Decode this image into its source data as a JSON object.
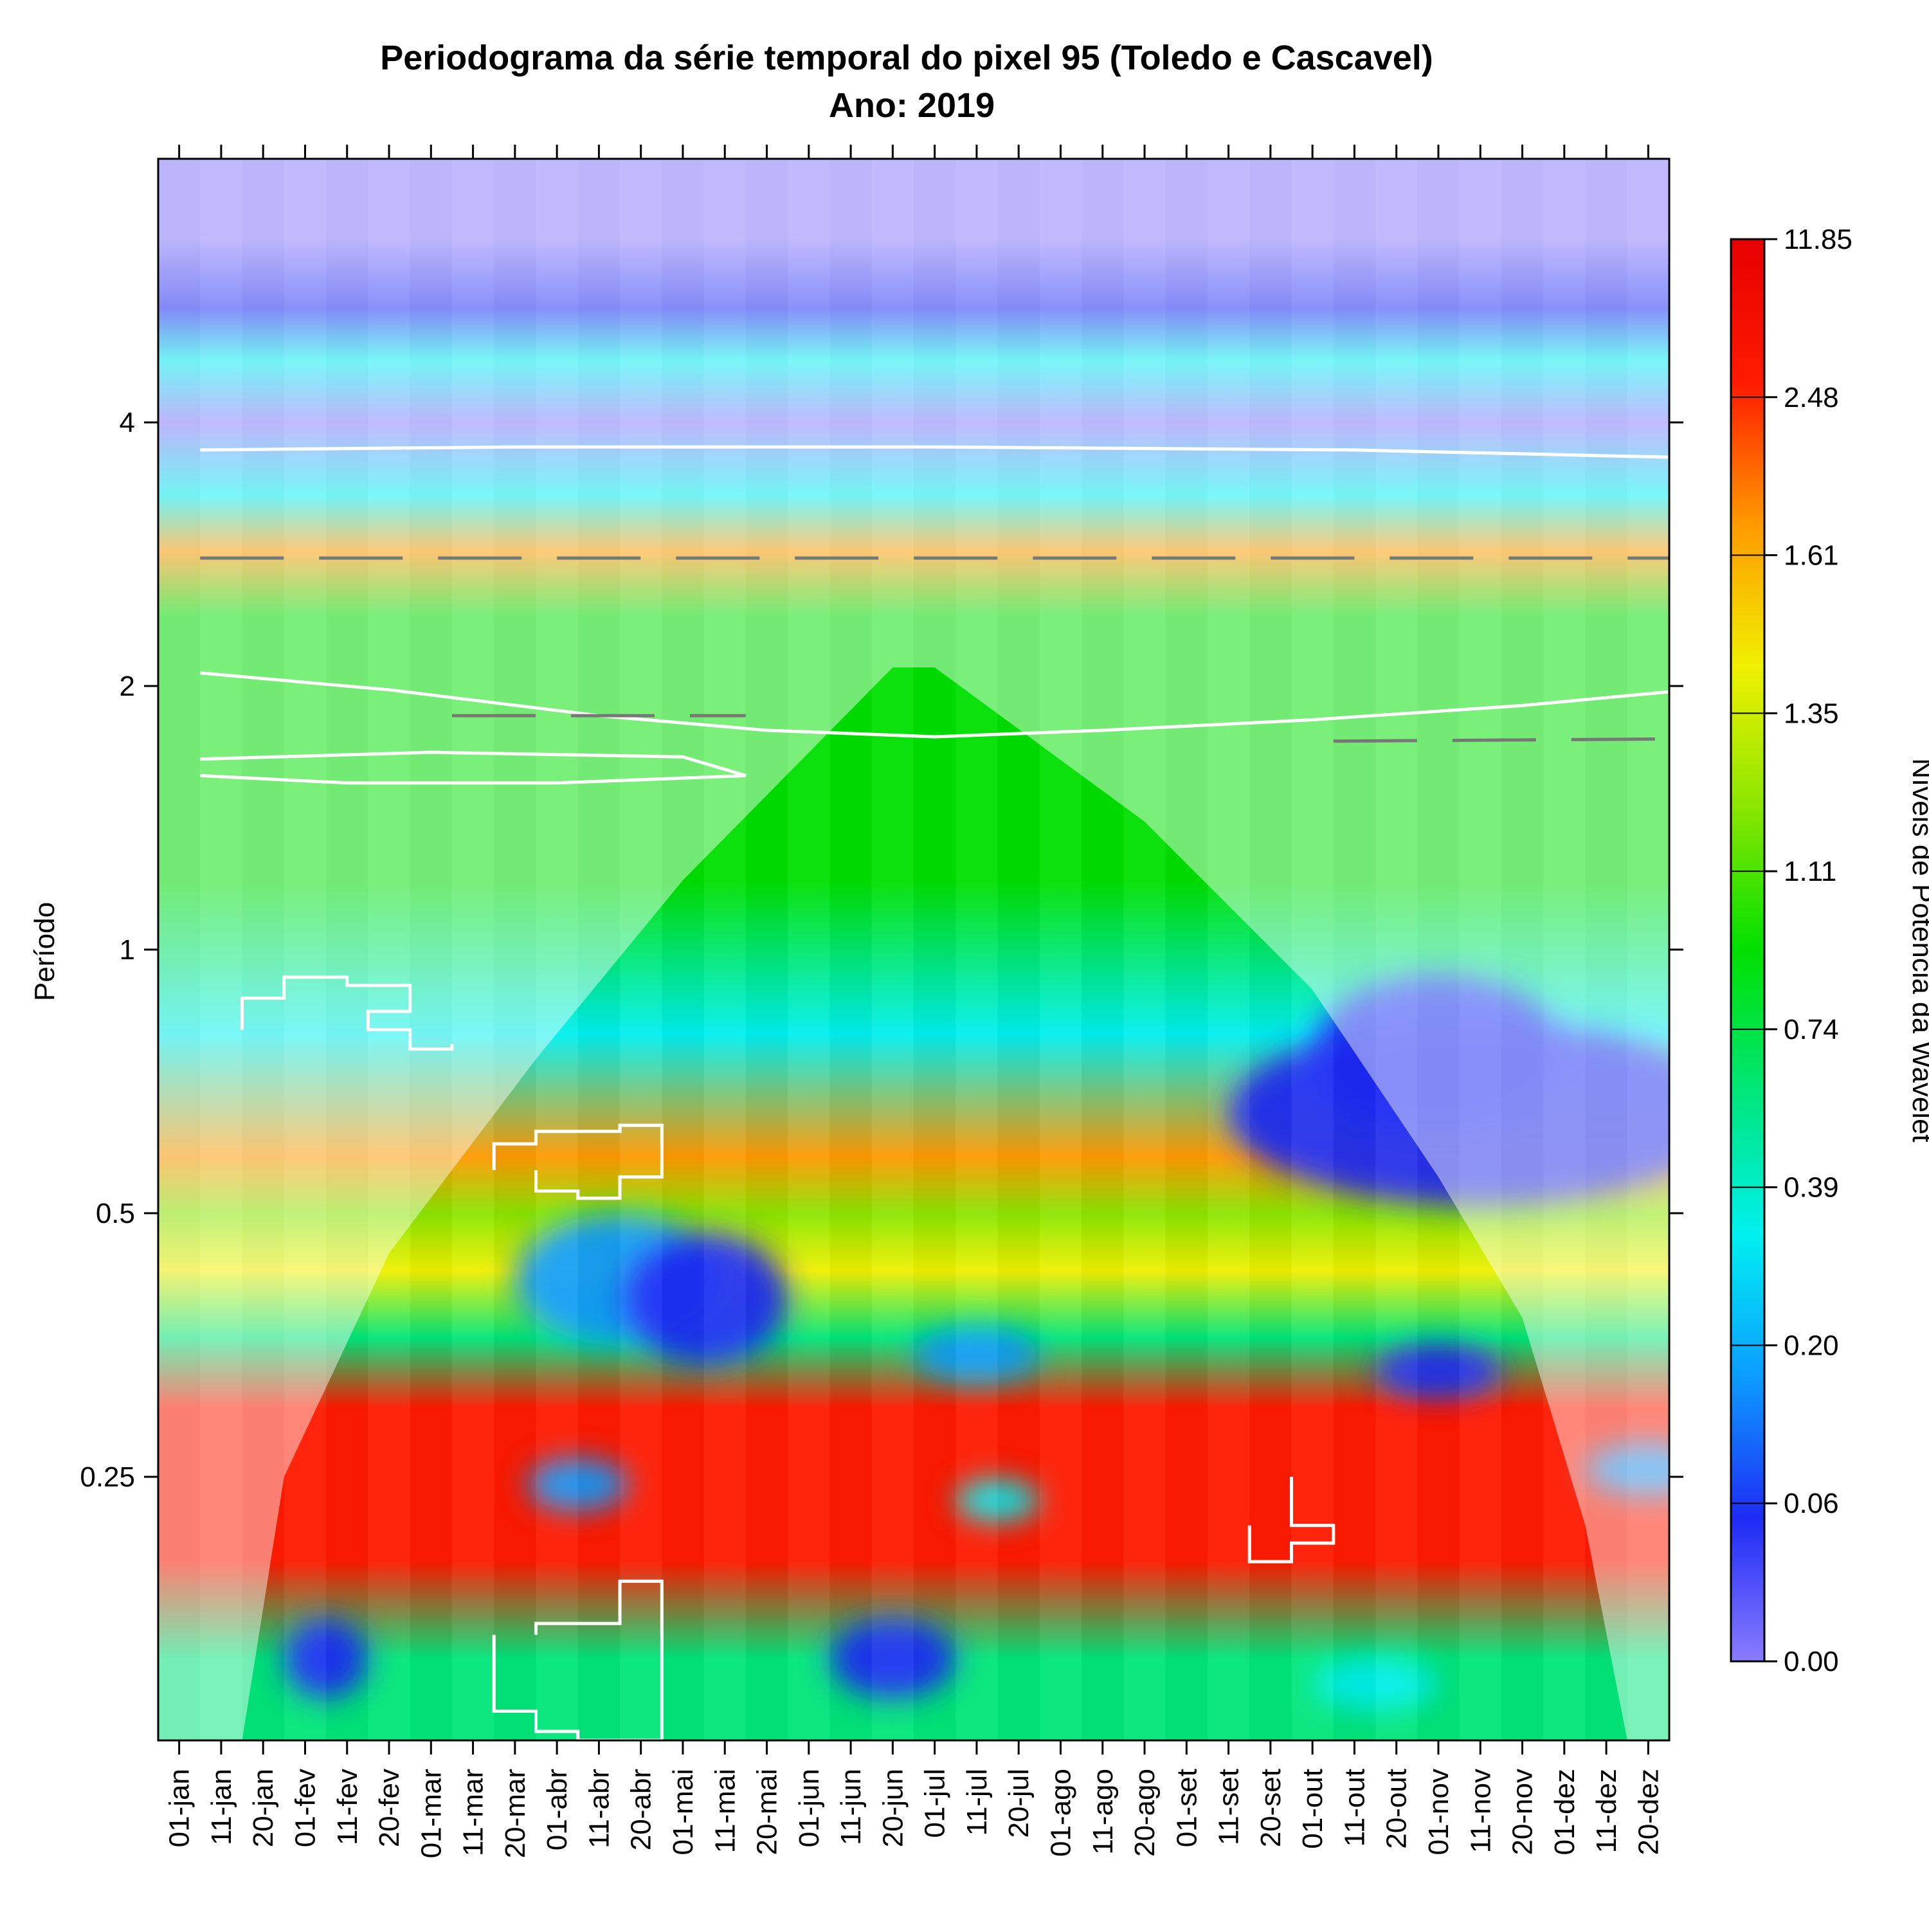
{
  "chart_data": {
    "type": "heatmap",
    "title": "Periodograma da série temporal do pixel 95 (Toledo e Cascavel)",
    "subtitle": "Ano: 2019",
    "xlabel": "",
    "ylabel": "Período",
    "y_scale": "log2",
    "ylim": [
      0.125,
      8
    ],
    "x_ticks": [
      "01-jan",
      "11-jan",
      "20-jan",
      "01-fev",
      "11-fev",
      "20-fev",
      "01-mar",
      "11-mar",
      "20-mar",
      "01-abr",
      "11-abr",
      "20-abr",
      "01-mai",
      "11-mai",
      "20-mai",
      "01-jun",
      "11-jun",
      "20-jun",
      "01-jul",
      "11-jul",
      "20-jul",
      "01-ago",
      "11-ago",
      "20-ago",
      "01-set",
      "11-set",
      "20-set",
      "01-out",
      "11-out",
      "20-out",
      "01-nov",
      "11-nov",
      "20-nov",
      "01-dez",
      "11-dez",
      "20-dez"
    ],
    "y_ticks": [
      {
        "value": 4,
        "label": "4"
      },
      {
        "value": 2,
        "label": "2"
      },
      {
        "value": 1,
        "label": "1"
      },
      {
        "value": 0.5,
        "label": "0.5"
      },
      {
        "value": 0.25,
        "label": "0.25"
      }
    ],
    "colorbar": {
      "title": "Níveis de Potência da Wavelet",
      "levels": [
        "0.00",
        "0.06",
        "0.20",
        "0.39",
        "0.74",
        "1.11",
        "1.35",
        "1.61",
        "2.48",
        "11.85"
      ],
      "colors": [
        "#8a7cff",
        "#1e2cf5",
        "#0d9cff",
        "#00f0f0",
        "#00e67a",
        "#00e000",
        "#8ae600",
        "#f0f000",
        "#ff9900",
        "#ff1a00",
        "#e60000"
      ]
    },
    "power_bands": [
      {
        "period": 6.5,
        "level": 0
      },
      {
        "period": 5.4,
        "level": 1
      },
      {
        "period": 4.7,
        "level": 3
      },
      {
        "period": 4.0,
        "level": 0
      },
      {
        "period": 3.3,
        "level": 3
      },
      {
        "period": 2.85,
        "level": 8
      },
      {
        "period": 2.4,
        "level": 5
      },
      {
        "period": 1.9,
        "level": 5
      },
      {
        "period": 1.2,
        "level": 5
      },
      {
        "period": 0.8,
        "level": 3
      },
      {
        "period": 0.58,
        "level": 8
      },
      {
        "period": 0.5,
        "level": 6
      },
      {
        "period": 0.43,
        "level": 7
      },
      {
        "period": 0.36,
        "level": 4
      },
      {
        "period": 0.3,
        "level": 9
      },
      {
        "period": 0.2,
        "level": 9
      },
      {
        "period": 0.155,
        "level": 4
      },
      {
        "period": 0.13,
        "level": 4
      }
    ],
    "blobs": [
      {
        "x": 31,
        "period": 0.65,
        "rx": 6,
        "ry_log2": 0.35,
        "level": 1
      },
      {
        "x": 30,
        "period": 0.76,
        "rx": 3,
        "ry_log2": 0.3,
        "level": 1
      },
      {
        "x": 10.5,
        "period": 0.42,
        "rx": 2.5,
        "ry_log2": 0.25,
        "level": 2
      },
      {
        "x": 12.5,
        "period": 0.4,
        "rx": 2,
        "ry_log2": 0.25,
        "level": 1
      },
      {
        "x": 19,
        "period": 0.345,
        "rx": 1.5,
        "ry_log2": 0.1,
        "level": 2
      },
      {
        "x": 30,
        "period": 0.33,
        "rx": 1.5,
        "ry_log2": 0.1,
        "level": 1
      },
      {
        "x": 3.5,
        "period": 0.155,
        "rx": 1,
        "ry_log2": 0.15,
        "level": 1
      },
      {
        "x": 17,
        "period": 0.155,
        "rx": 1.5,
        "ry_log2": 0.15,
        "level": 1
      },
      {
        "x": 9.5,
        "period": 0.245,
        "rx": 1.2,
        "ry_log2": 0.1,
        "level": 2
      },
      {
        "x": 19.5,
        "period": 0.235,
        "rx": 1,
        "ry_log2": 0.08,
        "level": 3
      },
      {
        "x": 35,
        "period": 0.255,
        "rx": 1.5,
        "ry_log2": 0.1,
        "level": 2
      },
      {
        "x": 28.5,
        "period": 0.145,
        "rx": 1.5,
        "ry_log2": 0.1,
        "level": 3
      }
    ],
    "cone_of_influence": [
      [
        1.5,
        0.125
      ],
      [
        2.5,
        0.25
      ],
      [
        5,
        0.45
      ],
      [
        8.5,
        0.75
      ],
      [
        12,
        1.2
      ],
      [
        17,
        2.1
      ],
      [
        18,
        2.1
      ],
      [
        23,
        1.4
      ],
      [
        27,
        0.9
      ],
      [
        30,
        0.55
      ],
      [
        32,
        0.38
      ],
      [
        33.5,
        0.22
      ],
      [
        34.5,
        0.125
      ]
    ],
    "ridge_lines": [
      {
        "color": "white",
        "points": [
          [
            0.5,
            3.72
          ],
          [
            8,
            3.75
          ],
          [
            18,
            3.75
          ],
          [
            28,
            3.72
          ],
          [
            35.5,
            3.65
          ]
        ]
      },
      {
        "color": "white",
        "points": [
          [
            0.5,
            2.07
          ],
          [
            5,
            1.98
          ],
          [
            10,
            1.85
          ],
          [
            14,
            1.78
          ],
          [
            18,
            1.75
          ],
          [
            22,
            1.78
          ],
          [
            27,
            1.83
          ],
          [
            32,
            1.9
          ],
          [
            35.5,
            1.97
          ]
        ]
      },
      {
        "color": "white",
        "points": [
          [
            0.5,
            1.65
          ],
          [
            6,
            1.68
          ],
          [
            12,
            1.66
          ],
          [
            13.5,
            1.58
          ],
          [
            9,
            1.55
          ],
          [
            4,
            1.55
          ],
          [
            0.5,
            1.58
          ]
        ]
      },
      {
        "color": "gray-dash",
        "points": [
          [
            0.5,
            2.8
          ],
          [
            35.5,
            2.8
          ]
        ]
      },
      {
        "color": "gray-dash",
        "points": [
          [
            6.5,
            1.85
          ],
          [
            13.5,
            1.85
          ]
        ]
      },
      {
        "color": "gray-dash",
        "points": [
          [
            27.5,
            1.73
          ],
          [
            35.5,
            1.74
          ]
        ]
      }
    ],
    "significance_regions": [
      {
        "points": [
          [
            1.5,
            0.81
          ],
          [
            1.5,
            0.88
          ],
          [
            2.5,
            0.88
          ],
          [
            2.5,
            0.93
          ],
          [
            4,
            0.93
          ],
          [
            4,
            0.91
          ],
          [
            5.5,
            0.91
          ],
          [
            5.5,
            0.85
          ],
          [
            4.5,
            0.85
          ],
          [
            4.5,
            0.81
          ],
          [
            5.5,
            0.81
          ],
          [
            5.5,
            0.77
          ],
          [
            6.5,
            0.77
          ],
          [
            6.5,
            0.78
          ]
        ]
      },
      {
        "points": [
          [
            7.5,
            0.56
          ],
          [
            7.5,
            0.6
          ],
          [
            8.5,
            0.6
          ],
          [
            8.5,
            0.62
          ],
          [
            10.5,
            0.62
          ],
          [
            10.5,
            0.63
          ],
          [
            11.5,
            0.63
          ],
          [
            11.5,
            0.55
          ],
          [
            10.5,
            0.55
          ],
          [
            10.5,
            0.52
          ],
          [
            9.5,
            0.52
          ],
          [
            9.5,
            0.53
          ],
          [
            8.5,
            0.53
          ],
          [
            8.5,
            0.56
          ]
        ]
      },
      {
        "points": [
          [
            7.5,
            0.165
          ],
          [
            7.5,
            0.135
          ],
          [
            8.5,
            0.135
          ],
          [
            8.5,
            0.128
          ],
          [
            9.5,
            0.128
          ],
          [
            9.5,
            0.125
          ],
          [
            11.5,
            0.125
          ],
          [
            11.5,
            0.19
          ],
          [
            10.5,
            0.19
          ],
          [
            10.5,
            0.17
          ],
          [
            8.5,
            0.17
          ],
          [
            8.5,
            0.165
          ]
        ]
      },
      {
        "points": [
          [
            25.5,
            0.22
          ],
          [
            25.5,
            0.2
          ],
          [
            26.5,
            0.2
          ],
          [
            26.5,
            0.21
          ],
          [
            27.5,
            0.21
          ],
          [
            27.5,
            0.22
          ],
          [
            26.5,
            0.22
          ],
          [
            26.5,
            0.25
          ]
        ]
      }
    ],
    "grid": false
  }
}
